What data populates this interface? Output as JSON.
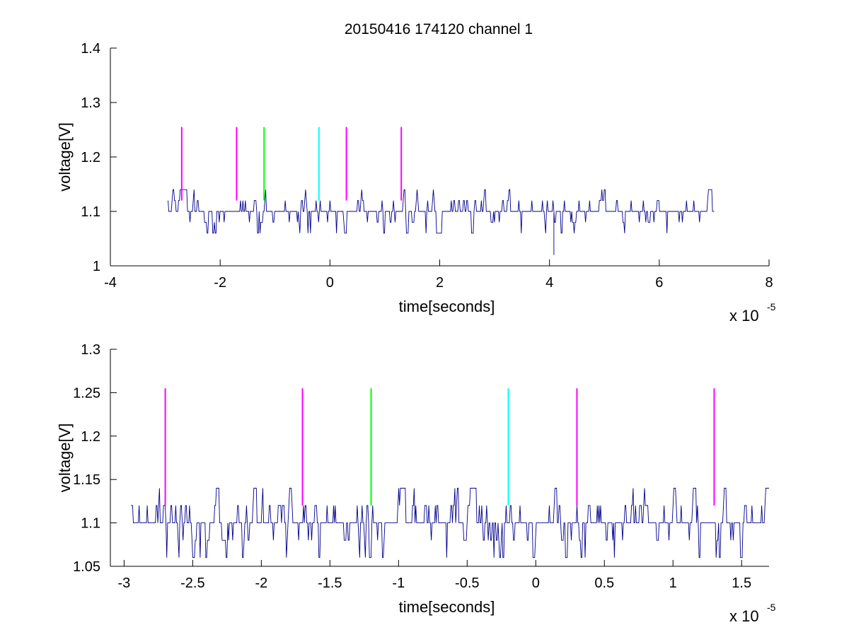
{
  "figure": {
    "background": "#ffffff"
  },
  "chart_data": [
    {
      "type": "line",
      "title": "20150416 174120 channel 1",
      "xlabel": "time[seconds]",
      "ylabel": "voltage[V]",
      "x_multiplier_label": "x 10",
      "x_multiplier_exponent": "-5",
      "xlim": [
        -4,
        8
      ],
      "ylim": [
        1,
        1.4
      ],
      "xticks": [
        -4,
        -2,
        0,
        2,
        4,
        6,
        8
      ],
      "xtick_labels": [
        "-4",
        "-2",
        "0",
        "2",
        "4",
        "6",
        "8"
      ],
      "yticks": [
        1,
        1.1,
        1.2,
        1.3,
        1.4
      ],
      "ytick_labels": [
        "1",
        "1.1",
        "1.2",
        "1.3",
        "1.4"
      ],
      "grid": false,
      "legend": "none",
      "series": [
        {
          "color": "#00008b",
          "style": "quantized voltage trace",
          "x_range": [
            -2.95,
            7.0
          ],
          "baseline": 1.1,
          "levels": [
            1.06,
            1.08,
            1.1,
            1.12,
            1.14
          ],
          "outliers": [
            {
              "x": 4.08,
              "y": 1.02
            }
          ]
        }
      ],
      "markers": [
        {
          "x": -2.7,
          "y_from": 1.12,
          "y_to": 1.255,
          "color": "#ff00ff"
        },
        {
          "x": -1.7,
          "y_from": 1.12,
          "y_to": 1.255,
          "color": "#ff00ff"
        },
        {
          "x": -1.2,
          "y_from": 1.12,
          "y_to": 1.255,
          "color": "#00ff00"
        },
        {
          "x": -0.2,
          "y_from": 1.12,
          "y_to": 1.255,
          "color": "#00ffff"
        },
        {
          "x": 0.3,
          "y_from": 1.12,
          "y_to": 1.255,
          "color": "#ff00ff"
        },
        {
          "x": 1.3,
          "y_from": 1.12,
          "y_to": 1.255,
          "color": "#ff00ff"
        }
      ]
    },
    {
      "type": "line",
      "title": "",
      "xlabel": "time[seconds]",
      "ylabel": "voltage[V]",
      "x_multiplier_label": "x 10",
      "x_multiplier_exponent": "-5",
      "xlim": [
        -3.1,
        1.7
      ],
      "ylim": [
        1.05,
        1.3
      ],
      "xticks": [
        -3,
        -2.5,
        -2,
        -1.5,
        -1,
        -0.5,
        0,
        0.5,
        1,
        1.5
      ],
      "xtick_labels": [
        "-3",
        "-2.5",
        "-2",
        "-1.5",
        "-1",
        "-0.5",
        "0",
        "0.5",
        "1",
        "1.5"
      ],
      "yticks": [
        1.05,
        1.1,
        1.15,
        1.2,
        1.25,
        1.3
      ],
      "ytick_labels": [
        "1.05",
        "1.1",
        "1.15",
        "1.2",
        "1.25",
        "1.3"
      ],
      "grid": false,
      "legend": "none",
      "series": [
        {
          "color": "#00008b",
          "style": "quantized voltage trace",
          "x_range": [
            -2.95,
            1.7
          ],
          "baseline": 1.1,
          "levels": [
            1.06,
            1.08,
            1.1,
            1.12,
            1.14
          ],
          "outliers": []
        }
      ],
      "markers": [
        {
          "x": -2.7,
          "y_from": 1.12,
          "y_to": 1.255,
          "color": "#ff00ff"
        },
        {
          "x": -1.7,
          "y_from": 1.12,
          "y_to": 1.255,
          "color": "#ff00ff"
        },
        {
          "x": -1.2,
          "y_from": 1.12,
          "y_to": 1.255,
          "color": "#00ff00"
        },
        {
          "x": -0.2,
          "y_from": 1.12,
          "y_to": 1.255,
          "color": "#00ffff"
        },
        {
          "x": 0.3,
          "y_from": 1.12,
          "y_to": 1.255,
          "color": "#ff00ff"
        },
        {
          "x": 1.3,
          "y_from": 1.12,
          "y_to": 1.255,
          "color": "#ff00ff"
        }
      ]
    }
  ]
}
